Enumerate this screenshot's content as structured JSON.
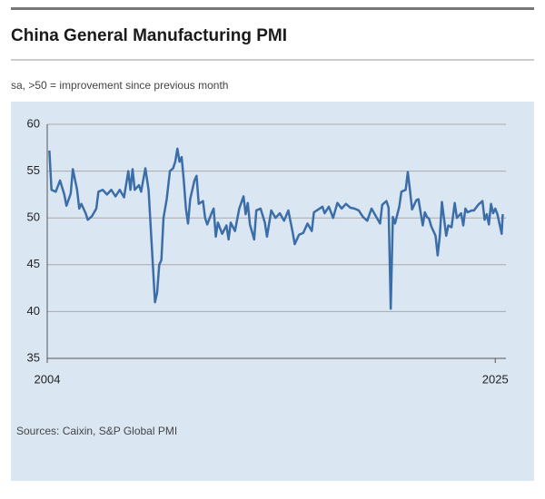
{
  "chart_data": {
    "type": "line",
    "title": "China General Manufacturing PMI",
    "subtitle": "sa, >50 = improvement since previous month",
    "source": "Sources: Caixin, S&P Global PMI",
    "x": [
      2004.1,
      2004.2,
      2004.4,
      2004.6,
      2004.8,
      2004.9,
      2005.1,
      2005.2,
      2005.4,
      2005.5,
      2005.6,
      2005.8,
      2005.9,
      2006.1,
      2006.3,
      2006.4,
      2006.6,
      2006.8,
      2007.0,
      2007.2,
      2007.4,
      2007.6,
      2007.8,
      2007.9,
      2008.0,
      2008.1,
      2008.3,
      2008.4,
      2008.6,
      2008.75,
      2008.85,
      2008.95,
      2009.05,
      2009.15,
      2009.25,
      2009.35,
      2009.45,
      2009.6,
      2009.75,
      2009.9,
      2010.0,
      2010.1,
      2010.2,
      2010.3,
      2010.4,
      2010.5,
      2010.6,
      2010.7,
      2010.9,
      2011.0,
      2011.1,
      2011.3,
      2011.4,
      2011.5,
      2011.7,
      2011.8,
      2011.9,
      2012.0,
      2012.2,
      2012.4,
      2012.5,
      2012.6,
      2012.8,
      2013.0,
      2013.2,
      2013.3,
      2013.4,
      2013.5,
      2013.7,
      2013.8,
      2014.0,
      2014.2,
      2014.3,
      2014.5,
      2014.7,
      2014.9,
      2015.1,
      2015.3,
      2015.5,
      2015.6,
      2015.8,
      2016.0,
      2016.2,
      2016.4,
      2016.5,
      2016.7,
      2016.9,
      2017.0,
      2017.2,
      2017.4,
      2017.6,
      2017.8,
      2018.0,
      2018.2,
      2018.4,
      2018.6,
      2018.8,
      2019.0,
      2019.2,
      2019.4,
      2019.6,
      2019.7,
      2019.9,
      2020.0,
      2020.1,
      2020.2,
      2020.3,
      2020.5,
      2020.6,
      2020.8,
      2020.9,
      2021.0,
      2021.1,
      2021.3,
      2021.4,
      2021.6,
      2021.7,
      2021.8,
      2021.9,
      2022.0,
      2022.2,
      2022.3,
      2022.4,
      2022.5,
      2022.7,
      2022.8,
      2022.95,
      2023.1,
      2023.2,
      2023.4,
      2023.5,
      2023.6,
      2023.7,
      2023.9,
      2024.0,
      2024.2,
      2024.4,
      2024.5,
      2024.6,
      2024.7,
      2024.8,
      2024.9,
      2025.0,
      2025.1,
      2025.3,
      2025.35
    ],
    "series": [
      {
        "color": "#3b6ea8",
        "values": [
          57.2,
          53,
          52.8,
          54,
          52.5,
          51.3,
          52.6,
          55.2,
          53,
          51,
          51.5,
          50.5,
          49.8,
          50.2,
          51,
          52.8,
          53,
          52.5,
          53,
          52.3,
          53,
          52.2,
          55,
          53,
          55.2,
          53,
          53.5,
          52.8,
          55.3,
          53,
          49,
          45,
          41,
          42,
          45,
          45.5,
          50,
          52,
          55,
          55.3,
          56,
          57.4,
          56,
          56.5,
          54,
          51,
          49.4,
          52,
          54,
          54.5,
          51.5,
          51.8,
          50,
          49.3,
          50.5,
          51,
          48,
          49.5,
          48.3,
          49.2,
          47.7,
          49.5,
          48.6,
          51,
          52.3,
          50.4,
          51.6,
          49.3,
          47.7,
          50.8,
          51,
          49.5,
          48,
          50.8,
          50,
          50.5,
          49.7,
          50.8,
          48.5,
          47.2,
          48.2,
          48.4,
          49.4,
          48.6,
          50.6,
          50.9,
          51.2,
          50.5,
          51.2,
          50,
          51.6,
          51,
          51.5,
          51.1,
          51,
          50.8,
          50.1,
          49.7,
          51,
          50.2,
          49.4,
          51.4,
          51.8,
          51.1,
          40.3,
          50.1,
          49.4,
          51.2,
          52.8,
          53,
          54.9,
          53,
          50.9,
          51.9,
          52,
          49.2,
          50.6,
          50.1,
          49.9,
          49.1,
          48.1,
          46,
          48.1,
          51.7,
          48.1,
          49.2,
          49,
          51.6,
          50,
          50.5,
          49.2,
          51,
          50.6,
          50.8,
          50.8,
          51.4,
          51.8,
          49.8,
          50.4,
          49.3,
          51.5,
          50.5,
          51,
          50.4,
          48.3,
          50.4
        ]
      }
    ],
    "xlim": [
      2004,
      2025.5
    ],
    "xticks": [
      2004,
      2025
    ],
    "ylim": [
      35,
      60
    ],
    "yticks": [
      35,
      40,
      45,
      50,
      55,
      60
    ],
    "grid": true
  }
}
